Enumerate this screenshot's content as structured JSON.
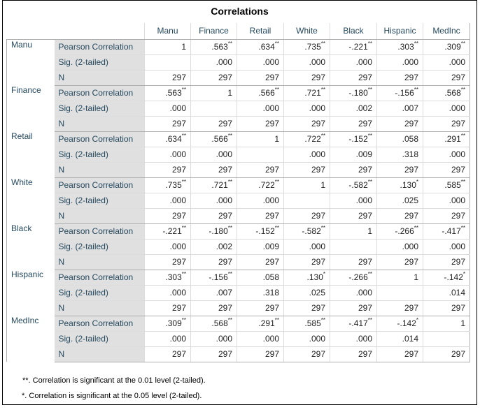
{
  "title": "Correlations",
  "columns": [
    "Manu",
    "Finance",
    "Retail",
    "White",
    "Black",
    "Hispanic",
    "MedInc"
  ],
  "stats": [
    "Pearson Correlation",
    "Sig. (2-tailed)",
    "N"
  ],
  "rows": [
    {
      "var": "Manu",
      "pearson": [
        [
          "1",
          ""
        ],
        [
          ".563",
          "**"
        ],
        [
          ".634",
          "**"
        ],
        [
          ".735",
          "**"
        ],
        [
          "-.221",
          "**"
        ],
        [
          ".303",
          "**"
        ],
        [
          ".309",
          "**"
        ]
      ],
      "sig": [
        "",
        ".000",
        ".000",
        ".000",
        ".000",
        ".000",
        ".000"
      ],
      "n": [
        "297",
        "297",
        "297",
        "297",
        "297",
        "297",
        "297"
      ]
    },
    {
      "var": "Finance",
      "pearson": [
        [
          ".563",
          "**"
        ],
        [
          "1",
          ""
        ],
        [
          ".566",
          "**"
        ],
        [
          ".721",
          "**"
        ],
        [
          "-.180",
          "**"
        ],
        [
          "-.156",
          "**"
        ],
        [
          ".568",
          "**"
        ]
      ],
      "sig": [
        ".000",
        "",
        ".000",
        ".000",
        ".002",
        ".007",
        ".000"
      ],
      "n": [
        "297",
        "297",
        "297",
        "297",
        "297",
        "297",
        "297"
      ]
    },
    {
      "var": "Retail",
      "pearson": [
        [
          ".634",
          "**"
        ],
        [
          ".566",
          "**"
        ],
        [
          "1",
          ""
        ],
        [
          ".722",
          "**"
        ],
        [
          "-.152",
          "**"
        ],
        [
          ".058",
          ""
        ],
        [
          ".291",
          "**"
        ]
      ],
      "sig": [
        ".000",
        ".000",
        "",
        ".000",
        ".009",
        ".318",
        ".000"
      ],
      "n": [
        "297",
        "297",
        "297",
        "297",
        "297",
        "297",
        "297"
      ]
    },
    {
      "var": "White",
      "pearson": [
        [
          ".735",
          "**"
        ],
        [
          ".721",
          "**"
        ],
        [
          ".722",
          "**"
        ],
        [
          "1",
          ""
        ],
        [
          "-.582",
          "**"
        ],
        [
          ".130",
          "*"
        ],
        [
          ".585",
          "**"
        ]
      ],
      "sig": [
        ".000",
        ".000",
        ".000",
        "",
        ".000",
        ".025",
        ".000"
      ],
      "n": [
        "297",
        "297",
        "297",
        "297",
        "297",
        "297",
        "297"
      ]
    },
    {
      "var": "Black",
      "pearson": [
        [
          "-.221",
          "**"
        ],
        [
          "-.180",
          "**"
        ],
        [
          "-.152",
          "**"
        ],
        [
          "-.582",
          "**"
        ],
        [
          "1",
          ""
        ],
        [
          "-.266",
          "**"
        ],
        [
          "-.417",
          "**"
        ]
      ],
      "sig": [
        ".000",
        ".002",
        ".009",
        ".000",
        "",
        ".000",
        ".000"
      ],
      "n": [
        "297",
        "297",
        "297",
        "297",
        "297",
        "297",
        "297"
      ]
    },
    {
      "var": "Hispanic",
      "pearson": [
        [
          ".303",
          "**"
        ],
        [
          "-.156",
          "**"
        ],
        [
          ".058",
          ""
        ],
        [
          ".130",
          "*"
        ],
        [
          "-.266",
          "**"
        ],
        [
          "1",
          ""
        ],
        [
          "-.142",
          "*"
        ]
      ],
      "sig": [
        ".000",
        ".007",
        ".318",
        ".025",
        ".000",
        "",
        ".014"
      ],
      "n": [
        "297",
        "297",
        "297",
        "297",
        "297",
        "297",
        "297"
      ]
    },
    {
      "var": "MedInc",
      "pearson": [
        [
          ".309",
          "**"
        ],
        [
          ".568",
          "**"
        ],
        [
          ".291",
          "**"
        ],
        [
          ".585",
          "**"
        ],
        [
          "-.417",
          "**"
        ],
        [
          "-.142",
          "*"
        ],
        [
          "1",
          ""
        ]
      ],
      "sig": [
        ".000",
        ".000",
        ".000",
        ".000",
        ".000",
        ".014",
        ""
      ],
      "n": [
        "297",
        "297",
        "297",
        "297",
        "297",
        "297",
        "297"
      ]
    }
  ],
  "notes": [
    "**. Correlation is significant at the 0.01 level (2-tailed).",
    "*. Correlation is significant at the 0.05 level (2-tailed)."
  ]
}
